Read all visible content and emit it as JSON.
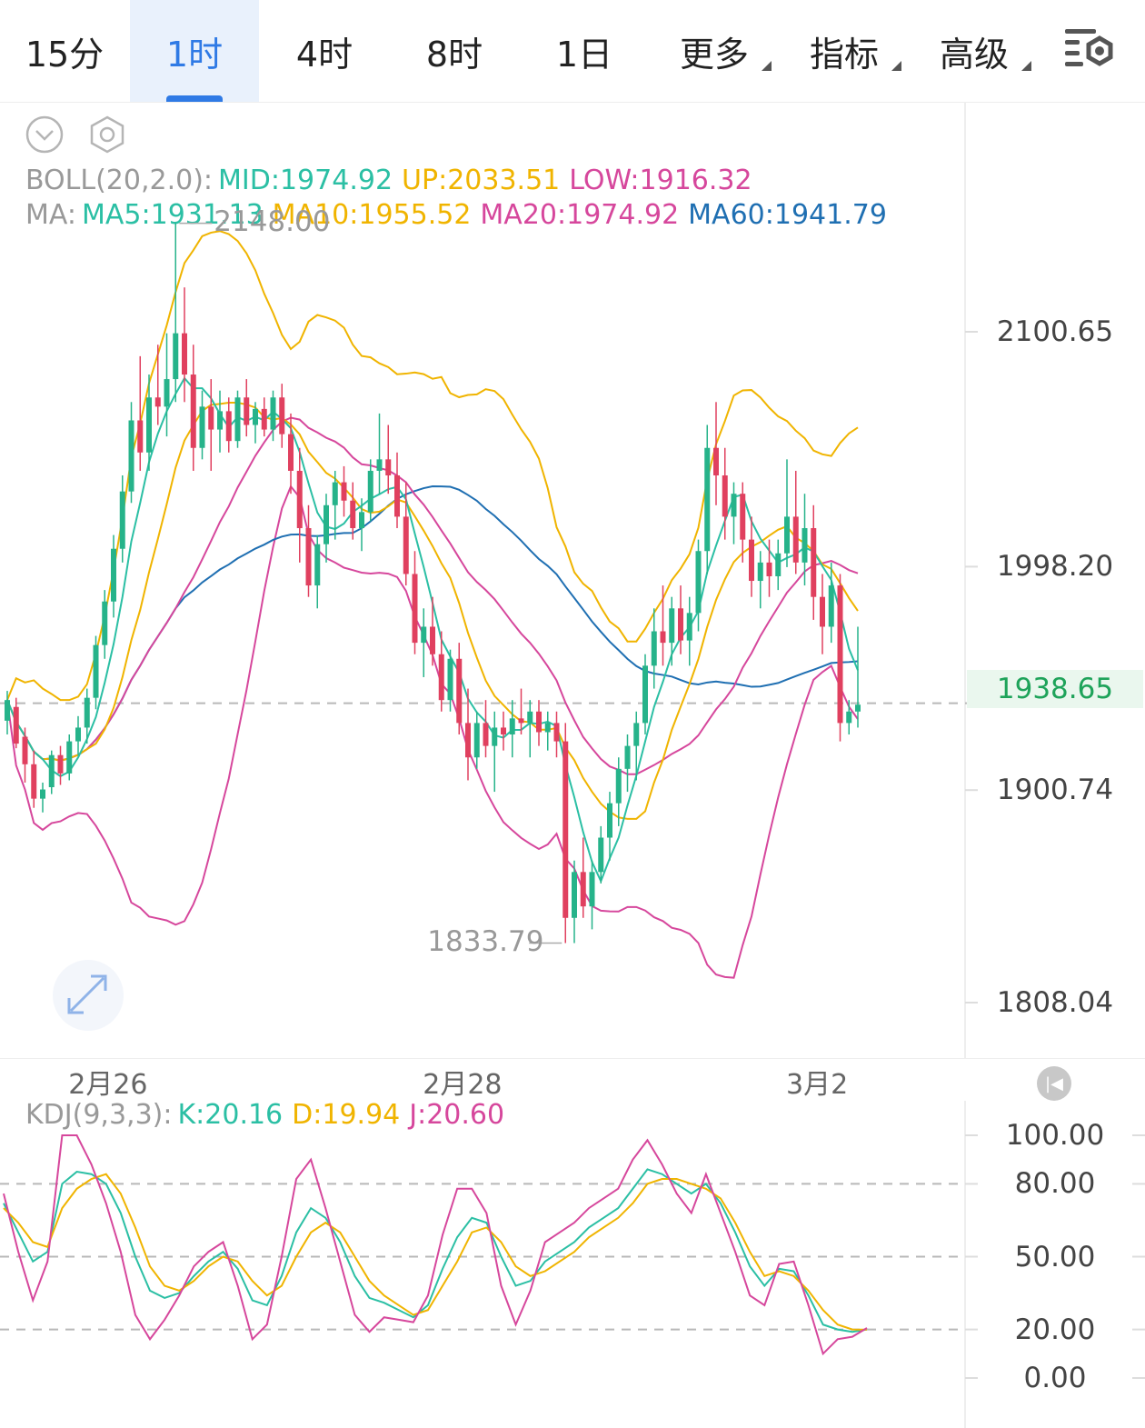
{
  "tabs": [
    {
      "label": "15分",
      "active": false,
      "dropdown": false
    },
    {
      "label": "1时",
      "active": true,
      "dropdown": false
    },
    {
      "label": "4时",
      "active": false,
      "dropdown": false
    },
    {
      "label": "8时",
      "active": false,
      "dropdown": false
    },
    {
      "label": "1日",
      "active": false,
      "dropdown": false
    },
    {
      "label": "更多",
      "active": false,
      "dropdown": true
    },
    {
      "label": "指标",
      "active": false,
      "dropdown": true
    },
    {
      "label": "高级",
      "active": false,
      "dropdown": true
    }
  ],
  "boll": {
    "label": "BOLL(20,2.0):",
    "mid": "MID:1974.92",
    "up": "UP:2033.51",
    "low": "LOW:1916.32"
  },
  "ma": {
    "label": "MA:",
    "ma5": "MA5:1931.13",
    "ma10": "MA10:1955.52",
    "ma20": "MA20:1974.92",
    "ma60": "MA60:1941.79"
  },
  "kdj": {
    "label": "KDJ(9,3,3):",
    "k": "K:20.16",
    "d": "D:19.94",
    "j": "J:20.60"
  },
  "colors": {
    "up": "#26b38a",
    "down": "#e0405f",
    "ma5": "#2bbfa4",
    "ma10": "#f0b400",
    "ma20": "#d6479c",
    "ma60": "#1f6fb2",
    "accent": "#2f7ae5"
  },
  "chart_data": [
    {
      "type": "candlestick",
      "title": "",
      "y_axis_ticks": [
        "2100.65",
        "1998.20",
        "1900.74",
        "1808.04"
      ],
      "ylim": [
        1790,
        2160
      ],
      "current_price": "1938.65",
      "max_annotation": "2148.00",
      "min_annotation": "1833.79",
      "x_tick_labels": [
        "2月26",
        "2月28",
        "3月2"
      ],
      "candles": [
        [
          1931,
          1944,
          1925,
          1940
        ],
        [
          1937,
          1941,
          1919,
          1921
        ],
        [
          1924,
          1928,
          1904,
          1912
        ],
        [
          1912,
          1918,
          1893,
          1897
        ],
        [
          1897,
          1904,
          1891,
          1901
        ],
        [
          1902,
          1918,
          1899,
          1916
        ],
        [
          1916,
          1920,
          1903,
          1908
        ],
        [
          1908,
          1925,
          1905,
          1922
        ],
        [
          1922,
          1933,
          1916,
          1928
        ],
        [
          1928,
          1945,
          1921,
          1941
        ],
        [
          1941,
          1968,
          1936,
          1964
        ],
        [
          1964,
          1988,
          1958,
          1983
        ],
        [
          1983,
          2012,
          1976,
          2006
        ],
        [
          2006,
          2038,
          2000,
          2031
        ],
        [
          2031,
          2070,
          2026,
          2062
        ],
        [
          2062,
          2090,
          2040,
          2048
        ],
        [
          2048,
          2082,
          2040,
          2072
        ],
        [
          2072,
          2095,
          2060,
          2068
        ],
        [
          2068,
          2100,
          2055,
          2080
        ],
        [
          2080,
          2148,
          2070,
          2100
        ],
        [
          2100,
          2120,
          2070,
          2082
        ],
        [
          2082,
          2095,
          2040,
          2050
        ],
        [
          2050,
          2075,
          2045,
          2068
        ],
        [
          2068,
          2080,
          2040,
          2058
        ],
        [
          2058,
          2075,
          2048,
          2066
        ],
        [
          2066,
          2072,
          2048,
          2053
        ],
        [
          2053,
          2075,
          2050,
          2072
        ],
        [
          2072,
          2080,
          2055,
          2060
        ],
        [
          2060,
          2070,
          2052,
          2067
        ],
        [
          2067,
          2072,
          2055,
          2058
        ],
        [
          2058,
          2075,
          2053,
          2072
        ],
        [
          2072,
          2078,
          2050,
          2056
        ],
        [
          2056,
          2065,
          2030,
          2040
        ],
        [
          2040,
          2050,
          2000,
          2015
        ],
        [
          2015,
          2025,
          1985,
          1990
        ],
        [
          1990,
          2012,
          1980,
          2008
        ],
        [
          2008,
          2030,
          2000,
          2025
        ],
        [
          2025,
          2040,
          2010,
          2035
        ],
        [
          2035,
          2042,
          2020,
          2027
        ],
        [
          2027,
          2035,
          2010,
          2015
        ],
        [
          2015,
          2028,
          2005,
          2022
        ],
        [
          2022,
          2045,
          2018,
          2040
        ],
        [
          2040,
          2065,
          2030,
          2045
        ],
        [
          2045,
          2060,
          2030,
          2038
        ],
        [
          2038,
          2048,
          2015,
          2020
        ],
        [
          2020,
          2035,
          1990,
          1995
        ],
        [
          1995,
          2005,
          1960,
          1965
        ],
        [
          1965,
          1980,
          1950,
          1972
        ],
        [
          1972,
          1985,
          1955,
          1960
        ],
        [
          1960,
          1970,
          1935,
          1940
        ],
        [
          1940,
          1962,
          1935,
          1958
        ],
        [
          1958,
          1965,
          1925,
          1930
        ],
        [
          1930,
          1945,
          1905,
          1915
        ],
        [
          1915,
          1935,
          1910,
          1930
        ],
        [
          1930,
          1940,
          1915,
          1920
        ],
        [
          1920,
          1935,
          1900,
          1928
        ],
        [
          1928,
          1935,
          1918,
          1925
        ],
        [
          1925,
          1940,
          1915,
          1932
        ],
        [
          1932,
          1945,
          1925,
          1930
        ],
        [
          1930,
          1940,
          1915,
          1935
        ],
        [
          1935,
          1940,
          1920,
          1926
        ],
        [
          1926,
          1935,
          1918,
          1930
        ],
        [
          1930,
          1935,
          1915,
          1922
        ],
        [
          1922,
          1930,
          1834,
          1845
        ],
        [
          1845,
          1870,
          1834,
          1865
        ],
        [
          1865,
          1880,
          1845,
          1850
        ],
        [
          1850,
          1870,
          1840,
          1865
        ],
        [
          1865,
          1885,
          1860,
          1880
        ],
        [
          1880,
          1900,
          1870,
          1895
        ],
        [
          1895,
          1915,
          1885,
          1910
        ],
        [
          1910,
          1925,
          1900,
          1920
        ],
        [
          1920,
          1935,
          1905,
          1930
        ],
        [
          1930,
          1960,
          1925,
          1955
        ],
        [
          1955,
          1980,
          1945,
          1970
        ],
        [
          1970,
          1990,
          1955,
          1965
        ],
        [
          1965,
          1985,
          1955,
          1980
        ],
        [
          1980,
          1990,
          1960,
          1966
        ],
        [
          1966,
          1985,
          1955,
          1978
        ],
        [
          1978,
          2010,
          1970,
          2005
        ],
        [
          2005,
          2060,
          1995,
          2050
        ],
        [
          2050,
          2070,
          2025,
          2038
        ],
        [
          2038,
          2050,
          2010,
          2020
        ],
        [
          2020,
          2035,
          2008,
          2030
        ],
        [
          2030,
          2035,
          2000,
          2010
        ],
        [
          2010,
          2020,
          1985,
          1992
        ],
        [
          1992,
          2005,
          1980,
          2000
        ],
        [
          2000,
          2010,
          1985,
          1994
        ],
        [
          1994,
          2010,
          1988,
          2004
        ],
        [
          2004,
          2045,
          1998,
          2020
        ],
        [
          2020,
          2040,
          1995,
          2000
        ],
        [
          2000,
          2030,
          1990,
          2015
        ],
        [
          2015,
          2025,
          1975,
          1985
        ],
        [
          1985,
          1995,
          1960,
          1972
        ],
        [
          1972,
          2000,
          1965,
          1990
        ],
        [
          1990,
          1995,
          1922,
          1930
        ],
        [
          1930,
          1940,
          1925,
          1935
        ],
        [
          1935,
          1972,
          1928,
          1938
        ]
      ]
    },
    {
      "type": "line",
      "title": "",
      "y_axis_ticks": [
        "100.00",
        "80.00",
        "50.00",
        "20.00",
        "0.00"
      ],
      "ylim": [
        -5,
        105
      ],
      "series": [
        {
          "name": "K",
          "color": "#2bbfa4",
          "values": [
            72,
            60,
            48,
            52,
            80,
            85,
            84,
            80,
            68,
            50,
            36,
            33,
            35,
            42,
            48,
            52,
            45,
            32,
            30,
            42,
            60,
            70,
            66,
            56,
            42,
            33,
            31,
            28,
            25,
            30,
            45,
            58,
            66,
            64,
            50,
            38,
            40,
            48,
            52,
            56,
            62,
            66,
            70,
            78,
            86,
            84,
            80,
            76,
            80,
            72,
            60,
            46,
            38,
            45,
            44,
            34,
            22,
            20,
            19,
            20
          ]
        },
        {
          "name": "D",
          "color": "#f0b400",
          "values": [
            70,
            64,
            56,
            54,
            70,
            78,
            82,
            84,
            76,
            62,
            46,
            38,
            36,
            40,
            46,
            50,
            48,
            40,
            34,
            38,
            50,
            60,
            64,
            60,
            50,
            40,
            34,
            30,
            26,
            28,
            38,
            48,
            60,
            62,
            56,
            46,
            42,
            44,
            48,
            52,
            58,
            62,
            66,
            72,
            80,
            82,
            82,
            80,
            78,
            74,
            64,
            52,
            42,
            44,
            42,
            36,
            28,
            22,
            20,
            19.94
          ]
        },
        {
          "name": "J",
          "color": "#d6479c",
          "values": [
            76,
            52,
            32,
            48,
            100,
            100,
            88,
            72,
            52,
            26,
            16,
            24,
            34,
            46,
            52,
            56,
            38,
            16,
            22,
            50,
            82,
            90,
            70,
            48,
            26,
            19,
            25,
            24,
            23,
            34,
            59,
            78,
            78,
            68,
            38,
            22,
            36,
            56,
            60,
            64,
            70,
            74,
            78,
            90,
            98,
            88,
            76,
            68,
            84,
            68,
            52,
            34,
            30,
            47,
            48,
            30,
            10,
            16,
            17,
            20.6
          ]
        }
      ]
    }
  ]
}
